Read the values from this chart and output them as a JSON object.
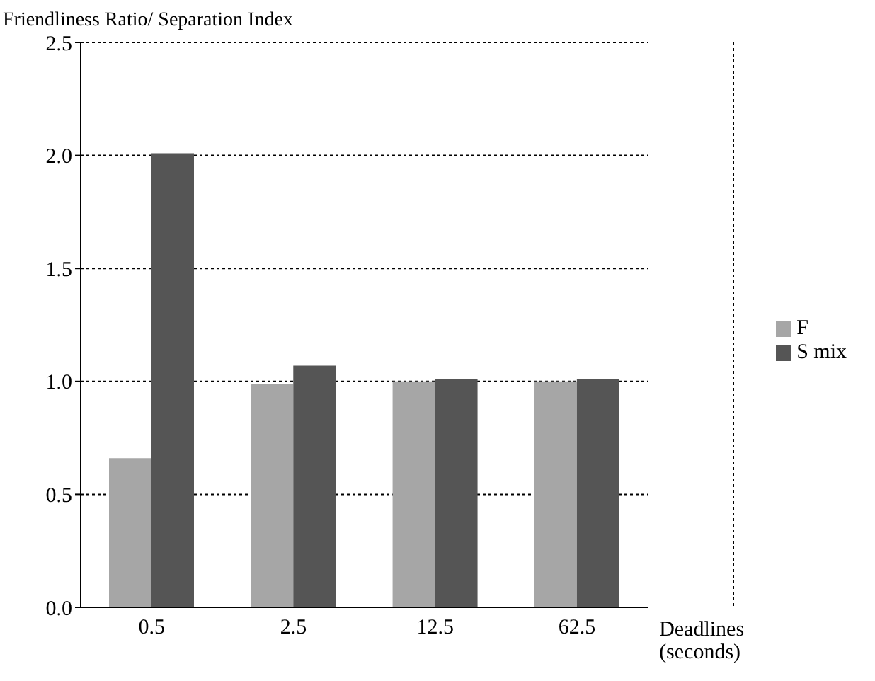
{
  "chart_data": {
    "type": "bar",
    "ylabel": "Friendliness Ratio/ Separation Index",
    "xlabel": "Deadlines (seconds)",
    "categories": [
      "0.5",
      "2.5",
      "12.5",
      "62.5"
    ],
    "series": [
      {
        "name": "F",
        "color": "#a6a6a6",
        "values": [
          0.66,
          0.99,
          1.0,
          1.0
        ]
      },
      {
        "name": "S mix",
        "color": "#555555",
        "values": [
          2.01,
          1.07,
          1.01,
          1.01
        ]
      }
    ],
    "ylim": [
      0,
      2.5
    ],
    "yticks": [
      {
        "value": 0,
        "label": "0.0"
      },
      {
        "value": 0.5,
        "label": "0.5"
      },
      {
        "value": 1,
        "label": "1.0"
      },
      {
        "value": 1.5,
        "label": "1.5"
      },
      {
        "value": 2,
        "label": "2.0"
      },
      {
        "value": 2.5,
        "label": "2.5"
      }
    ],
    "grid": "y",
    "legend": "right"
  }
}
